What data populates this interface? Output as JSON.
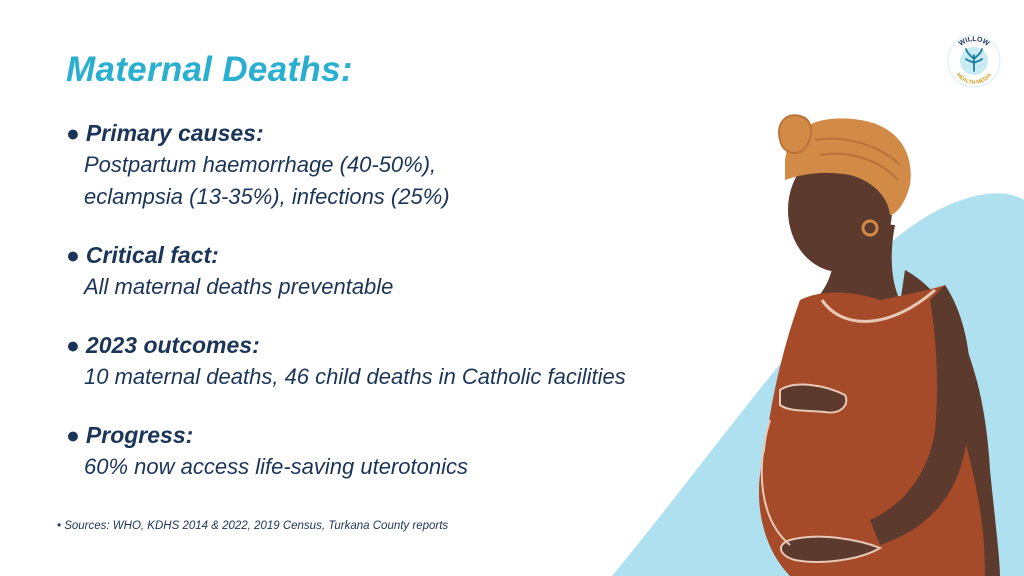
{
  "slide": {
    "title": "Maternal Deaths:",
    "bullet": "●",
    "points": [
      {
        "heading": "Primary causes:",
        "lines": [
          "Postpartum haemorrhage (40-50%),",
          "eclampsia (13-35%), infections (25%)"
        ]
      },
      {
        "heading": "Critical fact:",
        "lines": [
          "All maternal deaths preventable"
        ]
      },
      {
        "heading": "2023 outcomes:",
        "lines": [
          "10 maternal deaths, 46 child deaths in Catholic facilities"
        ]
      },
      {
        "heading": "Progress:",
        "lines": [
          "60% now access life-saving uterotonics"
        ]
      }
    ],
    "sources": "• Sources: WHO, KDHS 2014 & 2022, 2019 Census, Turkana County reports"
  },
  "logo": {
    "top_text": "WILLOW",
    "bottom_text": "HEALTH MEDIA",
    "icon": "tree-icon"
  },
  "colors": {
    "title": "#29afd0",
    "text": "#1b3558",
    "backdrop": "#aee0ef",
    "skin": "#5c3a2e",
    "dress": "#a64b2a",
    "headwrap": "#d28a47"
  }
}
